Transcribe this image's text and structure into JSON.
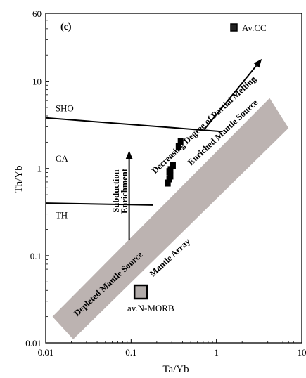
{
  "chart_data": {
    "type": "scatter",
    "panel_label": "(c)",
    "xlabel": "Ta/Yb",
    "ylabel": "Th/Yb",
    "x_scale": "log",
    "y_scale": "log",
    "xlim": [
      0.01,
      10
    ],
    "ylim": [
      0.01,
      60
    ],
    "x_ticks": [
      {
        "value": 0.01,
        "label": "0.01"
      },
      {
        "value": 0.1,
        "label": "0.1"
      },
      {
        "value": 1,
        "label": "1"
      },
      {
        "value": 10,
        "label": "10"
      }
    ],
    "y_ticks": [
      {
        "value": 0.01,
        "label": "0.01"
      },
      {
        "value": 0.1,
        "label": "0.1"
      },
      {
        "value": 1,
        "label": "1"
      },
      {
        "value": 10,
        "label": "10"
      },
      {
        "value": 60,
        "label": "60"
      }
    ],
    "grid": false,
    "legend": {
      "placement": "top-right",
      "entries": [
        {
          "label": "Av.CC",
          "marker": "square",
          "fill": "#222222"
        }
      ]
    },
    "series": [
      {
        "marker": "square",
        "color": "#000000",
        "points": [
          {
            "x": 0.38,
            "y": 2.05
          },
          {
            "x": 0.36,
            "y": 1.78
          },
          {
            "x": 0.31,
            "y": 1.08
          },
          {
            "x": 0.29,
            "y": 0.97
          },
          {
            "x": 0.28,
            "y": 0.92
          },
          {
            "x": 0.29,
            "y": 0.82
          },
          {
            "x": 0.28,
            "y": 0.76
          },
          {
            "x": 0.27,
            "y": 0.68
          }
        ]
      }
    ],
    "reference_points": [
      {
        "label": "av.N-MORB",
        "x": 0.13,
        "y": 0.038,
        "marker": "square",
        "fill": "#b0aaa8"
      }
    ],
    "mantle_array": {
      "polygon": [
        [
          0.012,
          0.02
        ],
        [
          0.021,
          0.011
        ],
        [
          7,
          2.9
        ],
        [
          4.2,
          6.4
        ]
      ],
      "fill": "#bcb3b1"
    },
    "boundary_lines": [
      {
        "points": [
          [
            0.01,
            3.8
          ],
          [
            1.15,
            2.65
          ]
        ]
      },
      {
        "points": [
          [
            0.01,
            0.4
          ],
          [
            0.18,
            0.38
          ]
        ]
      }
    ],
    "region_labels": [
      {
        "text": "SHO",
        "x": 0.013,
        "y": 4.5
      },
      {
        "text": "CA",
        "x": 0.013,
        "y": 1.2
      },
      {
        "text": "TH",
        "x": 0.013,
        "y": 0.27
      }
    ],
    "annotations": [
      {
        "text": "Subduction",
        "x": 0.072,
        "y": 0.55,
        "rotate": -90
      },
      {
        "text": "Enrichment",
        "x": 0.09,
        "y": 0.55,
        "rotate": -90
      },
      {
        "text": "Decreasing Degree of Partial Melting",
        "x": 0.75,
        "y": 3.0,
        "rotate": -43
      },
      {
        "text": "Enriched Mantle Source",
        "x": 1.25,
        "y": 2.45,
        "rotate": -43
      },
      {
        "text": "Mantle Array",
        "x": 0.3,
        "y": 0.09,
        "rotate": -43
      },
      {
        "text": "Depleted Mantle Source",
        "x": 0.057,
        "y": 0.045,
        "rotate": -43
      },
      {
        "text": "av.N-MORB",
        "x": 0.17,
        "y": 0.023,
        "rotate": 0
      }
    ],
    "arrows": [
      {
        "name": "subduction-enrichment-arrow",
        "from": [
          0.095,
          0.15
        ],
        "to": [
          0.095,
          1.6
        ]
      },
      {
        "name": "partial-melting-arrow",
        "from": [
          0.72,
          2.8
        ],
        "to": [
          3.4,
          18
        ]
      }
    ]
  }
}
